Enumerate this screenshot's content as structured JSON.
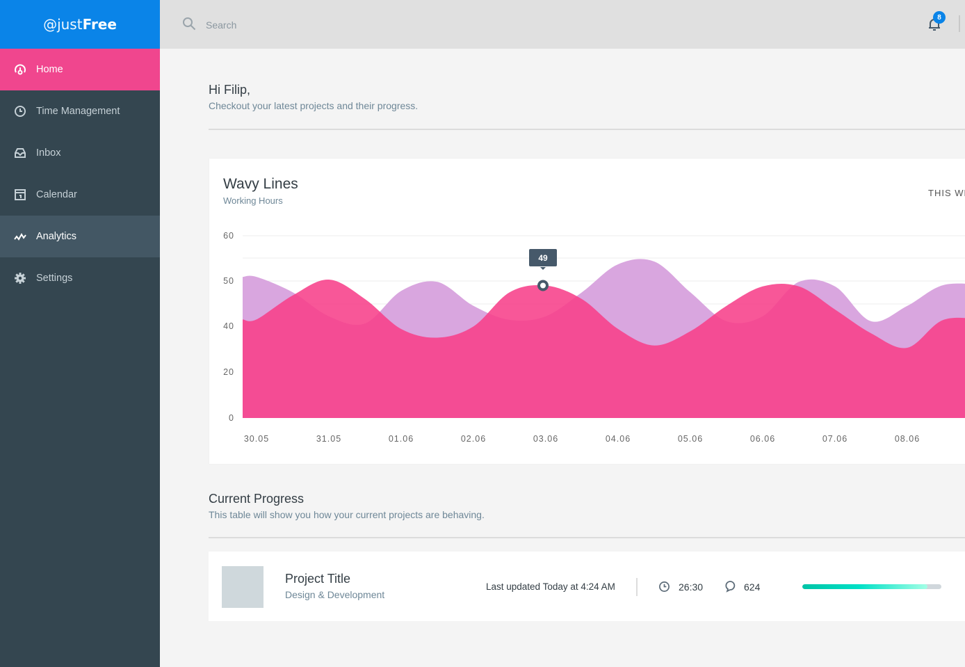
{
  "brand": {
    "prefix": "@just",
    "suffix": "Free",
    "color": "#0a84e8"
  },
  "sidebar": {
    "items": [
      {
        "label": "Home",
        "icon": "home-gauge-icon",
        "state": "current"
      },
      {
        "label": "Time Management",
        "icon": "clock-icon"
      },
      {
        "label": "Inbox",
        "icon": "inbox-icon"
      },
      {
        "label": "Calendar",
        "icon": "calendar-icon"
      },
      {
        "label": "Analytics",
        "icon": "analytics-icon",
        "state": "highlighted"
      },
      {
        "label": "Settings",
        "icon": "gear-icon"
      }
    ]
  },
  "header": {
    "search_placeholder": "Search",
    "notifications_count": "8"
  },
  "greeting": {
    "title": "Hi Filip,",
    "subtitle": "Checkout your latest projects and their progress."
  },
  "chart_card": {
    "title": "Wavy Lines",
    "subtitle": "Working Hours",
    "period": "THIS WEEK",
    "tooltip": "49"
  },
  "chart_data": {
    "type": "area",
    "title": "Wavy Lines",
    "subtitle": "Working Hours",
    "y_ticks": [
      60,
      50,
      40,
      20,
      0
    ],
    "x_ticks": [
      "30.05",
      "31.05",
      "01.06",
      "02.06",
      "03.06",
      "04.06",
      "05.06",
      "06.06",
      "07.06",
      "08.06"
    ],
    "x": [
      "30.05",
      "30.05 12:00",
      "31.05",
      "31.05 12:00",
      "01.06",
      "01.06 12:00",
      "02.06",
      "02.06 12:00",
      "03.06",
      "03.06 12:00",
      "04.06",
      "04.06 12:00",
      "05.06",
      "05.06 12:00",
      "06.06",
      "06.06 12:00",
      "07.06",
      "07.06 12:00",
      "08.06",
      "08.06 12:00"
    ],
    "series": [
      {
        "color": "#d9a6df",
        "values": [
          50.9,
          47.5,
          42.2,
          40.6,
          47.8,
          49.8,
          44.5,
          41.4,
          42.2,
          47.5,
          53.7,
          54.3,
          47.5,
          41.1,
          42.2,
          49.8,
          48.8,
          41.1,
          44.5,
          49.1
        ]
      },
      {
        "color": "#f7408a",
        "values": [
          41.5,
          46.8,
          50.3,
          46,
          38.8,
          35,
          39.9,
          47.5,
          49,
          46,
          38.8,
          31.6,
          37.8,
          44.5,
          48.8,
          48.8,
          43.7,
          36.9,
          30.6,
          41.4
        ]
      }
    ],
    "highlight": {
      "x": "03.06",
      "value": 49
    },
    "grid": true,
    "legend": "none"
  },
  "progress": {
    "title": "Current Progress",
    "subtitle": "This table will show you how your current projects are behaving.",
    "rows": [
      {
        "title": "Project Title",
        "subtitle": "Design & Development",
        "updated": "Last updated Today at 4:24 AM",
        "time": "26:30",
        "comments": "624",
        "progress": 0.9
      }
    ]
  }
}
